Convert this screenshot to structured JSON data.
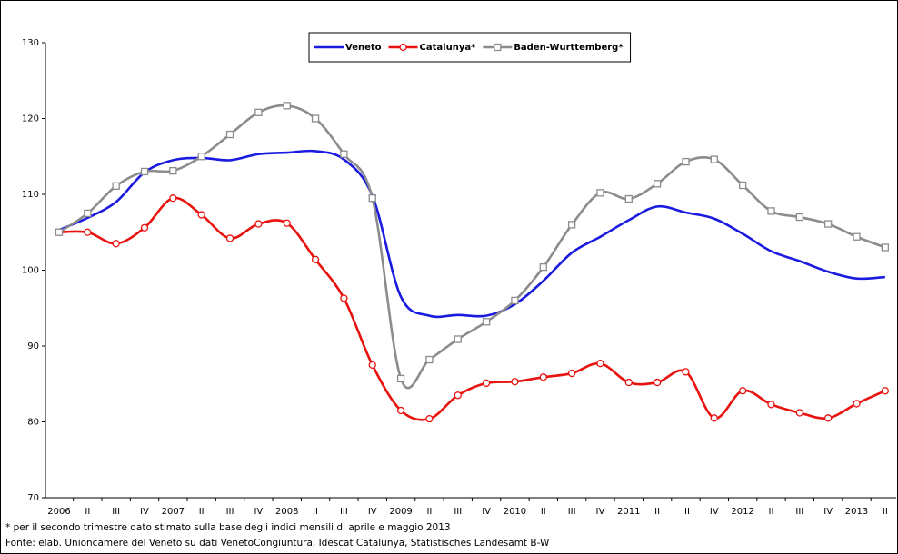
{
  "chart_data": {
    "type": "line",
    "categories": [
      "2006",
      "II",
      "III",
      "IV",
      "2007",
      "II",
      "III",
      "IV",
      "2008",
      "II",
      "III",
      "IV",
      "2009",
      "II",
      "III",
      "IV",
      "2010",
      "II",
      "III",
      "IV",
      "2011",
      "II",
      "III",
      "IV",
      "2012",
      "II",
      "III",
      "IV",
      "2013",
      "II"
    ],
    "series": [
      {
        "name": "Veneto",
        "color": "#1a1ae0",
        "marker": "none",
        "values": [
          105.3,
          106.9,
          109,
          112.9,
          114.5,
          114.8,
          114.5,
          115.3,
          115.5,
          115.7,
          114.6,
          109.8,
          96.5,
          94,
          94.1,
          94,
          95.5,
          98.6,
          102.3,
          104.4,
          106.6,
          108.4,
          107.6,
          106.8,
          104.8,
          102.5,
          101.2,
          99.8,
          98.9,
          99.1
        ]
      },
      {
        "name": "Catalunya*",
        "color": "#e8120f",
        "marker": "circle",
        "values": [
          105,
          105,
          103.5,
          105.6,
          109.5,
          107.3,
          104.2,
          106.1,
          106.2,
          101.4,
          96.3,
          87.5,
          81.5,
          80.4,
          83.5,
          85.1,
          85.3,
          85.9,
          86.4,
          87.7,
          85.2,
          85.2,
          86.6,
          80.5,
          84.1,
          82.3,
          81.2,
          80.5,
          82.4,
          84.1
        ]
      },
      {
        "name": "Baden-Wurttemberg*",
        "color": "#8c8c8c",
        "marker": "square",
        "values": [
          105,
          107.5,
          111.1,
          113,
          113.1,
          115,
          117.9,
          120.8,
          121.7,
          120,
          115.3,
          109.5,
          85.7,
          88.2,
          90.9,
          93.2,
          96,
          100.4,
          106,
          110.2,
          109.4,
          111.4,
          114.3,
          114.6,
          111.2,
          107.8,
          107,
          106.1,
          104.4,
          103
        ]
      }
    ],
    "ylim": [
      70,
      130
    ],
    "yticks": [
      70,
      80,
      90,
      100,
      110,
      120,
      130
    ],
    "grid": false,
    "legend": "top",
    "notes": [
      "* per il secondo trimestre dato stimato sulla base degli indici mensili di aprile e maggio 2013",
      "Fonte: elab. Unioncamere del Veneto su dati VenetoCongiuntura, Idescat Catalunya, Statistisches Landesamt B-W"
    ]
  }
}
